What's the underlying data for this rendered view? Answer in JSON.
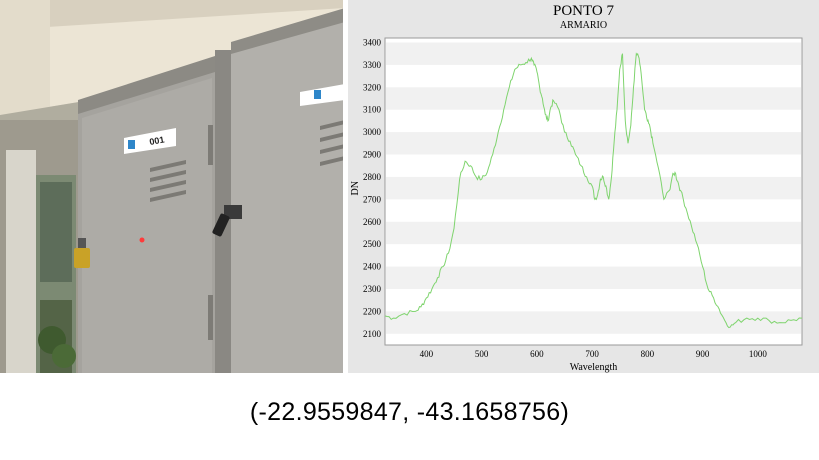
{
  "photo": {
    "locker_left_label": "001",
    "accent_colors": {
      "wall": "#eae3d3",
      "locker": "#a7a6a1",
      "label_icon": "#2e86c9",
      "padlock": "#c9a227"
    }
  },
  "chart_data": {
    "type": "line",
    "title": "PONTO 7",
    "subtitle": "ARMARIO",
    "xlabel": "Wavelength",
    "ylabel": "DN",
    "xlim": [
      325,
      1080
    ],
    "ylim": [
      2050,
      3420
    ],
    "xticks": [
      "400",
      "500",
      "600",
      "700",
      "800",
      "900",
      "1000"
    ],
    "xtick_values": [
      400,
      500,
      600,
      700,
      800,
      900,
      1000
    ],
    "yticks": [
      "2100",
      "2200",
      "2300",
      "2400",
      "2500",
      "2600",
      "2700",
      "2800",
      "2900",
      "3000",
      "3100",
      "3200",
      "3300",
      "3400"
    ],
    "ytick_values": [
      2100,
      2200,
      2300,
      2400,
      2500,
      2600,
      2700,
      2800,
      2900,
      3000,
      3100,
      3200,
      3300,
      3400
    ],
    "grid": "horizontal bands",
    "series_color": "#7fd46e",
    "series": [
      {
        "x": [
          325,
          340,
          360,
          380,
          390,
          400,
          410,
          420,
          430,
          440,
          450,
          460,
          470,
          480,
          490,
          500,
          510,
          520,
          530,
          540,
          550,
          560,
          570,
          580,
          590,
          595,
          600,
          605,
          610,
          615,
          620,
          625,
          630,
          640,
          650,
          660,
          670,
          680,
          690,
          700,
          705,
          710,
          715,
          720,
          725,
          730,
          735,
          740,
          745,
          750,
          755,
          760,
          765,
          770,
          775,
          780,
          785,
          790,
          795,
          800,
          805,
          810,
          820,
          830,
          840,
          845,
          850,
          855,
          860,
          870,
          880,
          890,
          900,
          910,
          920,
          930,
          940,
          950,
          960,
          980,
          1000,
          1020,
          1040,
          1060,
          1080
        ],
        "y": [
          2180,
          2170,
          2190,
          2200,
          2220,
          2260,
          2300,
          2350,
          2400,
          2460,
          2570,
          2790,
          2870,
          2850,
          2800,
          2790,
          2820,
          2900,
          3000,
          3100,
          3200,
          3280,
          3300,
          3310,
          3330,
          3300,
          3270,
          3200,
          3150,
          3080,
          3050,
          3110,
          3140,
          3100,
          3000,
          2960,
          2900,
          2850,
          2800,
          2760,
          2700,
          2720,
          2790,
          2800,
          2760,
          2700,
          2800,
          2960,
          3100,
          3280,
          3350,
          3050,
          2950,
          3030,
          3200,
          3350,
          3330,
          3230,
          3100,
          3050,
          3020,
          2950,
          2840,
          2700,
          2740,
          2800,
          2820,
          2780,
          2740,
          2660,
          2580,
          2500,
          2400,
          2300,
          2260,
          2210,
          2160,
          2130,
          2150,
          2170,
          2170,
          2160,
          2150,
          2160,
          2170
        ]
      }
    ]
  },
  "caption": {
    "coordinates": "(-22.9559847, -43.1658756)"
  }
}
